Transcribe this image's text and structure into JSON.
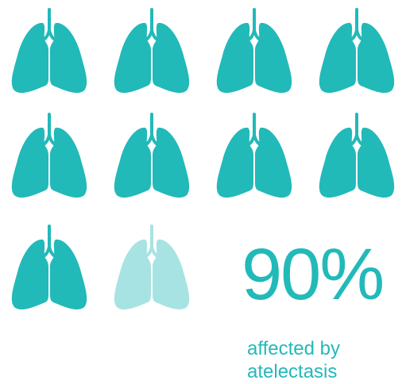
{
  "colors": {
    "affected": "#22b9b9",
    "unaffected": "#a8e3e3",
    "text": "#22b9b9",
    "background": "#ffffff"
  },
  "icon": "lungs-icon",
  "icons": {
    "total": 10,
    "affected": 9
  },
  "stat": {
    "value": "90%",
    "caption_line1": "affected by",
    "caption_line2": "atelectasis"
  }
}
